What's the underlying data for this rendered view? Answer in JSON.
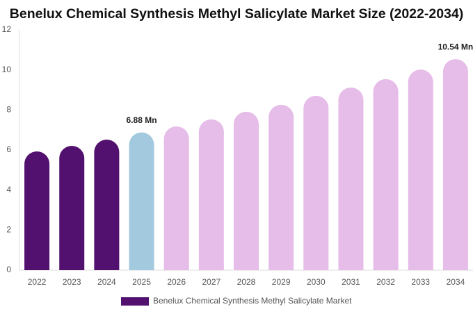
{
  "chart_data": {
    "type": "bar",
    "title": "Benelux Chemical Synthesis Methyl Salicylate Market Size (2022-2034)",
    "categories": [
      "2022",
      "2023",
      "2024",
      "2025",
      "2026",
      "2027",
      "2028",
      "2029",
      "2030",
      "2031",
      "2032",
      "2033",
      "2034"
    ],
    "series": [
      {
        "name": "Benelux Chemical Synthesis Methyl Salicylate Market",
        "color": "#52106f",
        "colors": [
          "#52106f",
          "#52106f",
          "#52106f",
          "#a3c9df",
          "#e6bce8",
          "#e6bce8",
          "#e6bce8",
          "#e6bce8",
          "#e6bce8",
          "#e6bce8",
          "#e6bce8",
          "#e6bce8",
          "#e6bce8"
        ],
        "values": [
          5.93,
          6.21,
          6.52,
          6.88,
          7.18,
          7.53,
          7.91,
          8.26,
          8.71,
          9.12,
          9.54,
          10.02,
          10.54
        ],
        "value_labels": [
          null,
          null,
          null,
          "6.88 Mn",
          null,
          null,
          null,
          null,
          null,
          null,
          null,
          null,
          "10.54 Mn"
        ]
      }
    ],
    "ylim": [
      0,
      12
    ],
    "yticks": [
      0,
      2,
      4,
      6,
      8,
      10,
      12
    ],
    "grid": false
  }
}
